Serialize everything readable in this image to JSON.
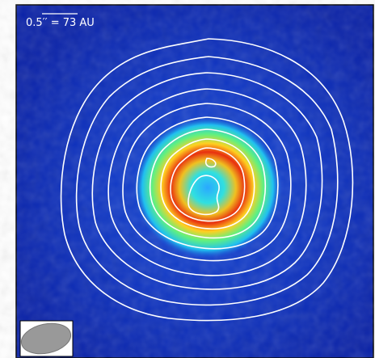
{
  "scale_label": "0.5′′ = 73 AU"
}
